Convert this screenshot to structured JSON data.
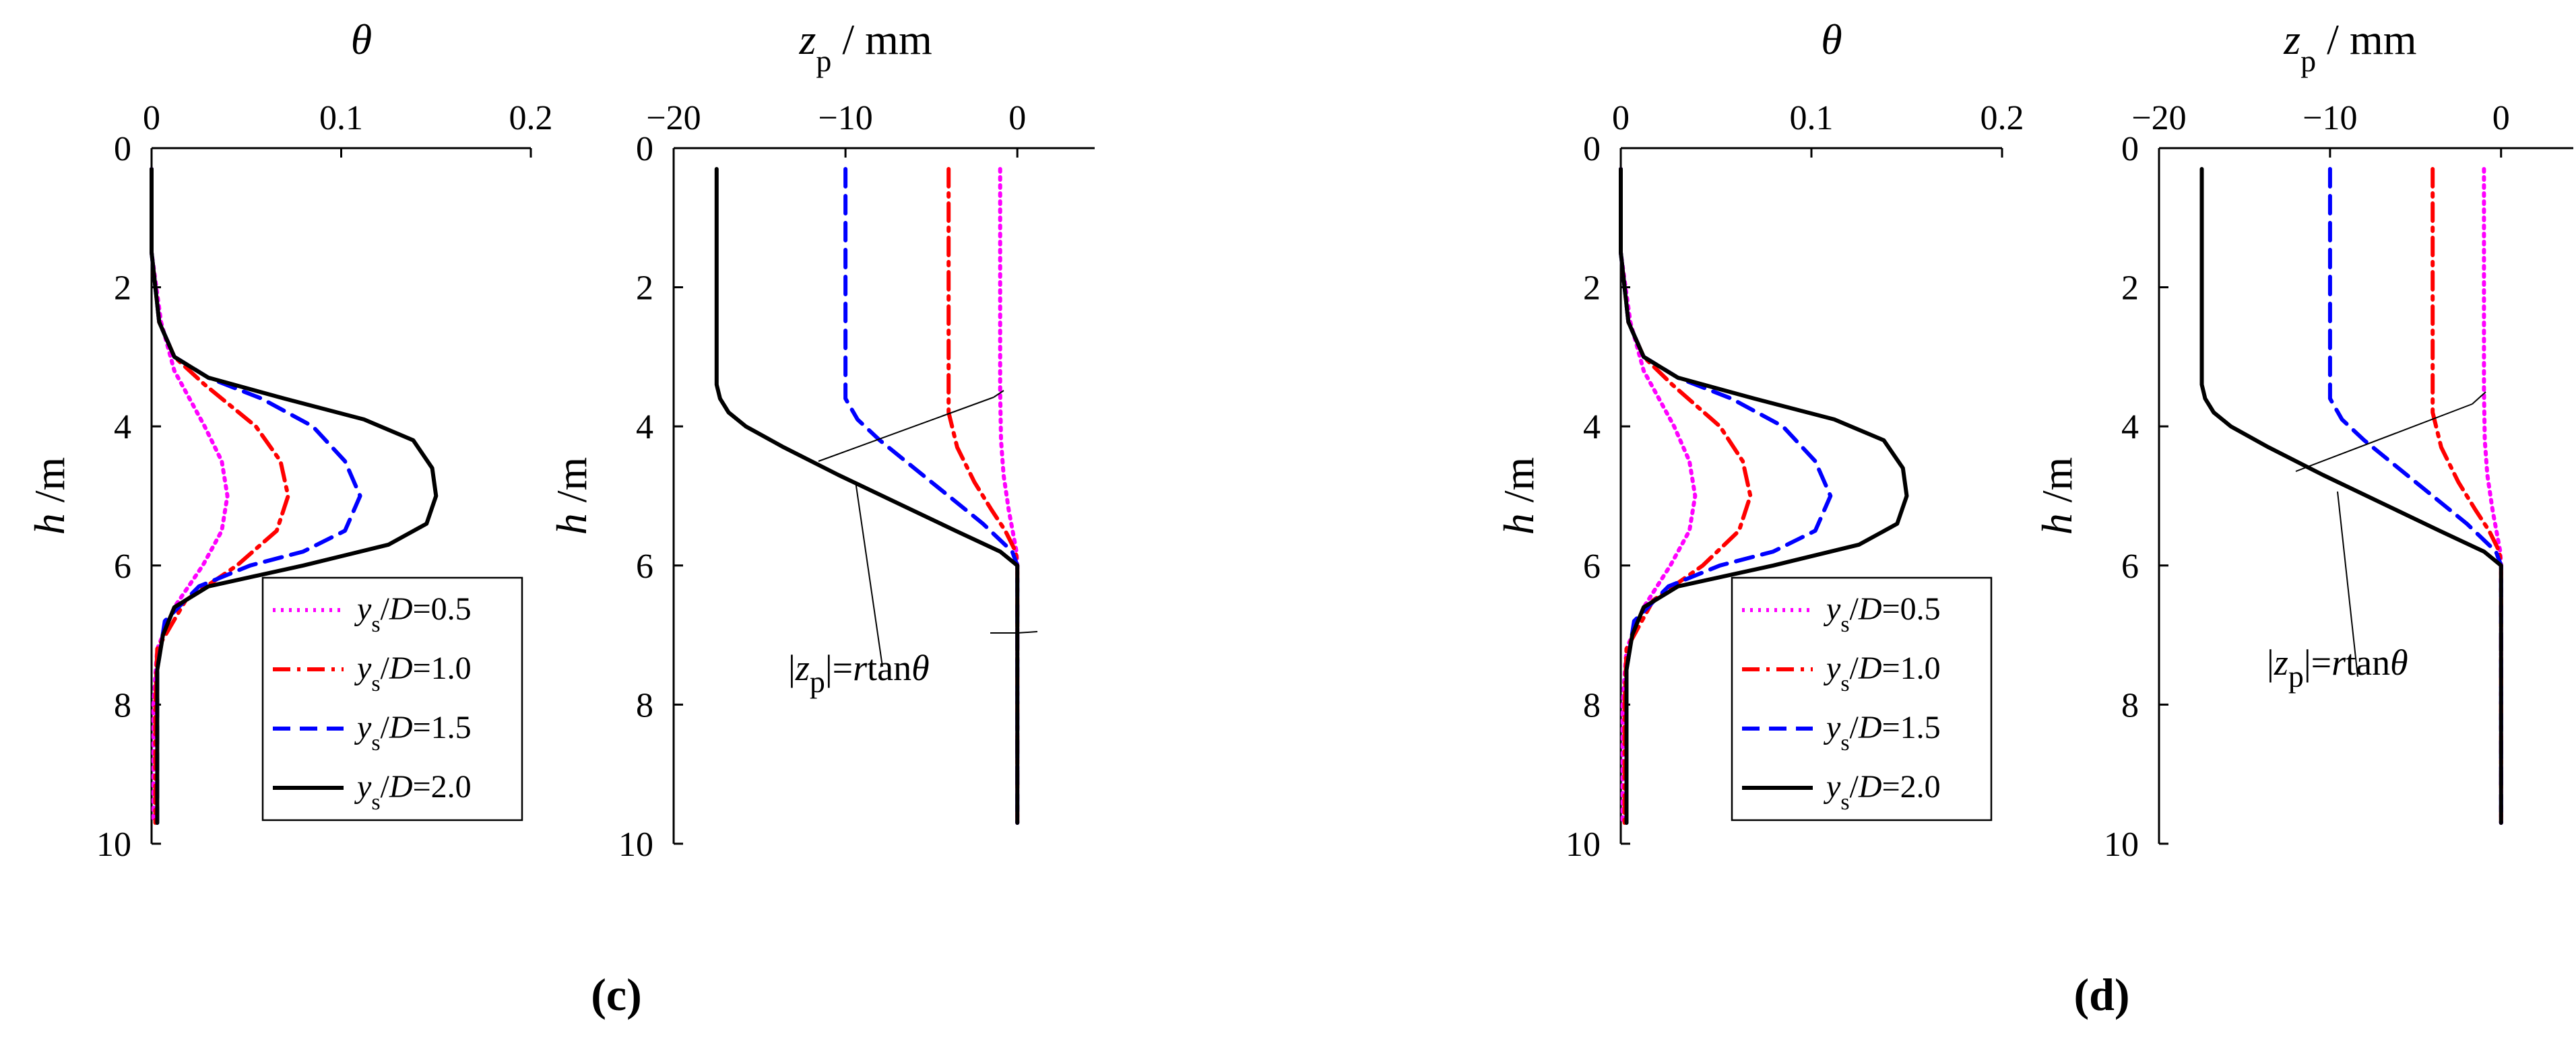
{
  "series_styles": {
    "ys/D=0.5": {
      "color": "#ff00ff",
      "dash": "4 8"
    },
    "ys/D=1.0": {
      "color": "#ff0000",
      "dash": "26 10 5 10"
    },
    "ys/D=1.5": {
      "color": "#0000ff",
      "dash": "26 14"
    },
    "ys/D=2.0": {
      "color": "#000000",
      "dash": ""
    }
  },
  "panels": [
    {
      "label": "(c)",
      "annotation": {
        "prefix": "|",
        "var": "z",
        "sub": "p",
        "mid": "|=",
        "r": "r",
        "tan": "tan",
        "theta": "θ"
      }
    },
    {
      "label": "(d)",
      "annotation": {
        "prefix": "|",
        "var": "z",
        "sub": "p",
        "mid": "|=",
        "r": "r",
        "tan": "tan",
        "theta": "θ"
      }
    }
  ],
  "labels": {
    "theta_xlabel": "θ",
    "zp_xlabel_var": "z",
    "zp_xlabel_sub": "p",
    "zp_xlabel_unit": "/ mm",
    "ylabel_var": "h",
    "ylabel_unit": "/m"
  },
  "chart_data": [
    {
      "panel": "(c) left",
      "type": "line",
      "xlabel": "θ",
      "ylabel": "h /m",
      "xlim": [
        0,
        0.2
      ],
      "ylim": [
        0,
        10
      ],
      "y_inverted": true,
      "x_axis_position": "top",
      "xticks": [
        0,
        0.1,
        0.2
      ],
      "xtick_labels": [
        "0",
        "0.1",
        "0.2"
      ],
      "yticks": [
        0,
        2,
        4,
        6,
        8,
        10
      ],
      "ytick_labels": [
        "0",
        "2",
        "4",
        "6",
        "8",
        "10"
      ],
      "legend_position": "bottom-right",
      "series": [
        {
          "name": "ys/D=0.5",
          "legend": {
            "var": "y",
            "sub": "s",
            "rest": "/D=0.5"
          },
          "h": [
            0.3,
            1.5,
            2.5,
            3.2,
            4.0,
            4.5,
            5.0,
            5.5,
            6.0,
            6.6,
            7.2,
            8.0,
            9.0,
            9.7
          ],
          "x": [
            0.0,
            0.0,
            0.005,
            0.012,
            0.028,
            0.037,
            0.04,
            0.037,
            0.027,
            0.012,
            0.003,
            0.001,
            0.001,
            0.001
          ]
        },
        {
          "name": "ys/D=1.0",
          "legend": {
            "var": "y",
            "sub": "s",
            "rest": "/D=1.0"
          },
          "h": [
            0.3,
            1.5,
            2.5,
            3.0,
            3.4,
            4.0,
            4.5,
            5.0,
            5.5,
            6.0,
            6.5,
            7.2,
            8.0,
            9.7
          ],
          "x": [
            0.0,
            0.0,
            0.004,
            0.012,
            0.028,
            0.055,
            0.068,
            0.072,
            0.066,
            0.045,
            0.018,
            0.003,
            0.002,
            0.002
          ]
        },
        {
          "name": "ys/D=1.5",
          "legend": {
            "var": "y",
            "sub": "s",
            "rest": "/D=1.5"
          },
          "h": [
            0.3,
            1.5,
            2.5,
            3.0,
            3.3,
            3.6,
            4.0,
            4.5,
            5.0,
            5.5,
            5.8,
            6.0,
            6.3,
            6.8,
            7.5,
            8.0,
            9.7
          ],
          "x": [
            0.0,
            0.0,
            0.004,
            0.012,
            0.03,
            0.058,
            0.085,
            0.102,
            0.11,
            0.102,
            0.08,
            0.052,
            0.025,
            0.007,
            0.003,
            0.003,
            0.003
          ]
        },
        {
          "name": "ys/D=2.0",
          "legend": {
            "var": "y",
            "sub": "s",
            "rest": "/D=2.0"
          },
          "h": [
            0.3,
            1.5,
            2.5,
            3.0,
            3.3,
            3.6,
            3.9,
            4.2,
            4.6,
            5.0,
            5.4,
            5.7,
            6.0,
            6.3,
            6.6,
            7.0,
            7.5,
            8.0,
            9.7
          ],
          "x": [
            0.0,
            0.0,
            0.004,
            0.012,
            0.03,
            0.07,
            0.112,
            0.138,
            0.148,
            0.15,
            0.145,
            0.125,
            0.08,
            0.03,
            0.012,
            0.006,
            0.003,
            0.003,
            0.003
          ]
        }
      ]
    },
    {
      "panel": "(c) right",
      "type": "line",
      "xlabel": "zp / mm",
      "ylabel": "h /m",
      "xlim": [
        -20,
        4.5
      ],
      "ylim": [
        0,
        10
      ],
      "y_inverted": true,
      "x_axis_position": "top",
      "xticks": [
        -20,
        -10,
        0
      ],
      "xtick_labels": [
        "−20",
        "−10",
        "0"
      ],
      "yticks": [
        0,
        2,
        4,
        6,
        8,
        10
      ],
      "ytick_labels": [
        "0",
        "2",
        "4",
        "6",
        "8",
        "10"
      ],
      "series": [
        {
          "name": "ys/D=0.5",
          "h": [
            0.3,
            3.5,
            4.2,
            4.7,
            5.2,
            5.6,
            5.8,
            6.0,
            9.7
          ],
          "x": [
            -1.0,
            -1.0,
            -0.95,
            -0.8,
            -0.5,
            -0.2,
            -0.05,
            0.0,
            0.0
          ]
        },
        {
          "name": "ys/D=1.0",
          "h": [
            0.3,
            3.8,
            4.3,
            4.8,
            5.2,
            5.5,
            5.8,
            6.0,
            9.7
          ],
          "x": [
            -4.0,
            -4.0,
            -3.5,
            -2.5,
            -1.5,
            -0.7,
            -0.1,
            0.0,
            0.0
          ]
        },
        {
          "name": "ys/D=1.5",
          "h": [
            0.3,
            3.6,
            3.9,
            4.2,
            4.6,
            5.0,
            5.4,
            5.8,
            6.0,
            9.7
          ],
          "x": [
            -10.0,
            -10.0,
            -9.3,
            -8.0,
            -6.0,
            -4.0,
            -2.0,
            -0.3,
            0.0,
            0.0
          ]
        },
        {
          "name": "ys/D=2.0",
          "h": [
            0.3,
            3.4,
            3.6,
            3.8,
            4.0,
            4.3,
            4.7,
            5.1,
            5.5,
            5.8,
            6.0,
            9.7
          ],
          "x": [
            -17.5,
            -17.5,
            -17.3,
            -16.8,
            -15.8,
            -13.6,
            -10.4,
            -7.0,
            -3.6,
            -1.0,
            0.0,
            0.0
          ]
        }
      ]
    },
    {
      "panel": "(d) left",
      "type": "line",
      "xlabel": "θ",
      "ylabel": "h /m",
      "xlim": [
        0,
        0.2
      ],
      "ylim": [
        0,
        10
      ],
      "y_inverted": true,
      "x_axis_position": "top",
      "xticks": [
        0,
        0.1,
        0.2
      ],
      "xtick_labels": [
        "0",
        "0.1",
        "0.2"
      ],
      "yticks": [
        0,
        2,
        4,
        6,
        8,
        10
      ],
      "ytick_labels": [
        "0",
        "2",
        "4",
        "6",
        "8",
        "10"
      ],
      "legend_position": "bottom-right",
      "series": [
        {
          "name": "ys/D=0.5",
          "legend": {
            "var": "y",
            "sub": "s",
            "rest": "/D=0.5"
          },
          "h": [
            0.3,
            1.5,
            2.5,
            3.2,
            4.0,
            4.5,
            5.0,
            5.5,
            6.0,
            6.6,
            7.2,
            8.0,
            9.0,
            9.7
          ],
          "x": [
            0.0,
            0.0,
            0.005,
            0.012,
            0.028,
            0.036,
            0.039,
            0.036,
            0.026,
            0.012,
            0.003,
            0.001,
            0.001,
            0.001
          ]
        },
        {
          "name": "ys/D=1.0",
          "legend": {
            "var": "y",
            "sub": "s",
            "rest": "/D=1.0"
          },
          "h": [
            0.3,
            1.5,
            2.5,
            3.0,
            3.4,
            4.0,
            4.5,
            5.0,
            5.5,
            6.0,
            6.5,
            7.2,
            8.0,
            9.7
          ],
          "x": [
            0.0,
            0.0,
            0.004,
            0.012,
            0.027,
            0.052,
            0.064,
            0.068,
            0.062,
            0.043,
            0.017,
            0.003,
            0.002,
            0.002
          ]
        },
        {
          "name": "ys/D=1.5",
          "legend": {
            "var": "y",
            "sub": "s",
            "rest": "/D=1.5"
          },
          "h": [
            0.3,
            1.5,
            2.5,
            3.0,
            3.3,
            3.6,
            4.0,
            4.5,
            5.0,
            5.5,
            5.8,
            6.0,
            6.3,
            6.8,
            7.5,
            8.0,
            9.7
          ],
          "x": [
            0.0,
            0.0,
            0.004,
            0.012,
            0.03,
            0.058,
            0.085,
            0.102,
            0.11,
            0.102,
            0.08,
            0.052,
            0.025,
            0.007,
            0.003,
            0.003,
            0.003
          ]
        },
        {
          "name": "ys/D=2.0",
          "legend": {
            "var": "y",
            "sub": "s",
            "rest": "/D=2.0"
          },
          "h": [
            0.3,
            1.5,
            2.5,
            3.0,
            3.3,
            3.6,
            3.9,
            4.2,
            4.6,
            5.0,
            5.4,
            5.7,
            6.0,
            6.3,
            6.6,
            7.0,
            7.5,
            8.0,
            9.7
          ],
          "x": [
            0.0,
            0.0,
            0.004,
            0.012,
            0.03,
            0.07,
            0.112,
            0.138,
            0.148,
            0.15,
            0.145,
            0.125,
            0.08,
            0.03,
            0.012,
            0.006,
            0.003,
            0.003,
            0.003
          ]
        }
      ]
    },
    {
      "panel": "(d) right",
      "type": "line",
      "xlabel": "zp / mm",
      "ylabel": "h /m",
      "xlim": [
        -20,
        4.5
      ],
      "ylim": [
        0,
        10
      ],
      "y_inverted": true,
      "x_axis_position": "top",
      "xticks": [
        -20,
        -10,
        0
      ],
      "xtick_labels": [
        "−20",
        "−10",
        "0"
      ],
      "yticks": [
        0,
        2,
        4,
        6,
        8,
        10
      ],
      "ytick_labels": [
        "0",
        "2",
        "4",
        "6",
        "8",
        "10"
      ],
      "series": [
        {
          "name": "ys/D=0.5",
          "h": [
            0.3,
            3.5,
            4.2,
            4.7,
            5.2,
            5.6,
            5.8,
            6.0,
            9.7
          ],
          "x": [
            -1.0,
            -1.0,
            -0.95,
            -0.8,
            -0.5,
            -0.2,
            -0.05,
            0.0,
            0.0
          ]
        },
        {
          "name": "ys/D=1.0",
          "h": [
            0.3,
            3.8,
            4.3,
            4.8,
            5.2,
            5.5,
            5.8,
            6.0,
            9.7
          ],
          "x": [
            -4.0,
            -4.0,
            -3.5,
            -2.5,
            -1.5,
            -0.7,
            -0.1,
            0.0,
            0.0
          ]
        },
        {
          "name": "ys/D=1.5",
          "h": [
            0.3,
            3.6,
            3.9,
            4.2,
            4.6,
            5.0,
            5.4,
            5.8,
            6.0,
            9.7
          ],
          "x": [
            -10.0,
            -10.0,
            -9.3,
            -8.0,
            -6.0,
            -4.0,
            -2.0,
            -0.3,
            0.0,
            0.0
          ]
        },
        {
          "name": "ys/D=2.0",
          "h": [
            0.3,
            3.4,
            3.6,
            3.8,
            4.0,
            4.3,
            4.7,
            5.1,
            5.5,
            5.8,
            6.0,
            9.7
          ],
          "x": [
            -17.5,
            -17.5,
            -17.3,
            -16.8,
            -15.8,
            -13.6,
            -10.4,
            -7.0,
            -3.6,
            -1.0,
            0.0,
            0.0
          ]
        }
      ]
    }
  ]
}
